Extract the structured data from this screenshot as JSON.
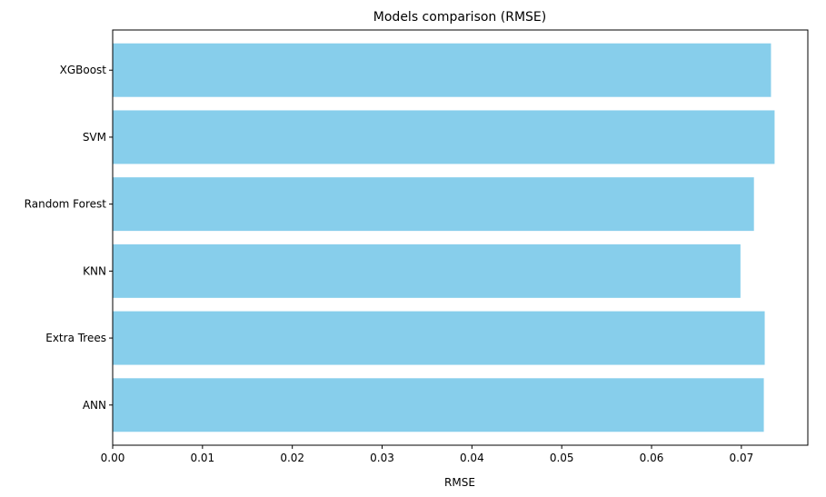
{
  "chart_data": {
    "type": "bar",
    "orientation": "horizontal",
    "title": "Models comparison (RMSE)",
    "xlabel": "RMSE",
    "ylabel": "",
    "categories": [
      "ANN",
      "Extra Trees",
      "KNN",
      "Random Forest",
      "SVM",
      "XGBoost"
    ],
    "values": [
      0.0725,
      0.0726,
      0.0699,
      0.0714,
      0.0737,
      0.0733
    ],
    "xlim": [
      0,
      0.0774
    ],
    "xticks": [
      0.0,
      0.01,
      0.02,
      0.03,
      0.04,
      0.05,
      0.06,
      0.07
    ],
    "xtick_labels": [
      "0.00",
      "0.01",
      "0.02",
      "0.03",
      "0.04",
      "0.05",
      "0.06",
      "0.07"
    ],
    "bar_color": "#87ceeb",
    "grid": false,
    "legend": "none"
  }
}
